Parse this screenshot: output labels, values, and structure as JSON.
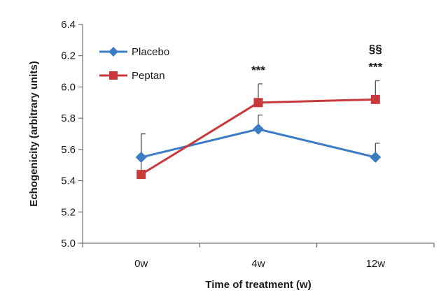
{
  "chart_data": {
    "type": "line",
    "categories": [
      "0w",
      "4w",
      "12w"
    ],
    "xlabel": "Time of treatment (w)",
    "ylabel": "Echogenicity (arbitrary units)",
    "ylim": [
      5.0,
      6.4
    ],
    "yticks": [
      "5.0",
      "5.2",
      "5.4",
      "5.6",
      "5.8",
      "6.0",
      "6.2",
      "6.4"
    ],
    "grid": false,
    "legend_position": "top-left",
    "series": [
      {
        "name": "Placebo",
        "values": [
          5.55,
          5.73,
          5.55
        ],
        "error_upper": [
          0.15,
          0.09,
          0.09
        ],
        "color": "#3c7cc4",
        "marker": "diamond"
      },
      {
        "name": "Peptan",
        "values": [
          5.44,
          5.9,
          5.92
        ],
        "error_upper": [
          0.26,
          0.12,
          0.12
        ],
        "color": "#c8393b",
        "marker": "square"
      }
    ],
    "annotations": [
      {
        "category": "4w",
        "text": "***"
      },
      {
        "category": "12w",
        "text": "***"
      },
      {
        "category": "12w",
        "text": "§§"
      }
    ]
  }
}
